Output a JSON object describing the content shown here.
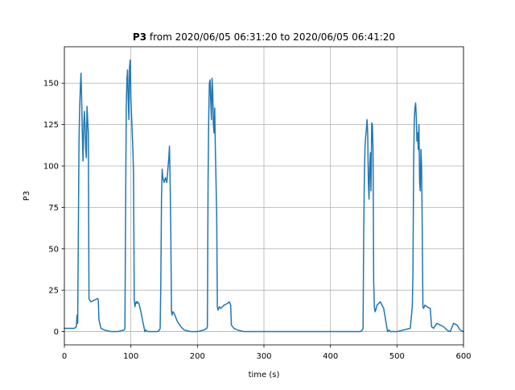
{
  "chart_data": {
    "type": "line",
    "title_bold": "P3",
    "title_rest": " from 2020/06/05 06:31:20 to 2020/06/05 06:41:20",
    "xlabel": "time (s)",
    "ylabel": "P3",
    "xlim": [
      0,
      600
    ],
    "ylim": [
      -8,
      172
    ],
    "xticks": [
      0,
      100,
      200,
      300,
      400,
      500,
      600
    ],
    "xtick_labels": [
      "0",
      "100",
      "200",
      "300",
      "400",
      "500",
      "600"
    ],
    "yticks": [
      0,
      25,
      50,
      75,
      100,
      125,
      150
    ],
    "ytick_labels": [
      "0",
      "25",
      "50",
      "75",
      "100",
      "125",
      "150"
    ],
    "grid": true,
    "color": "#1f77b4",
    "series": [
      {
        "x": [
          0,
          5,
          10,
          15,
          18,
          19,
          20,
          21,
          22,
          23,
          24,
          25,
          26,
          27,
          28,
          29,
          30,
          31,
          32,
          33,
          34,
          35,
          36,
          37,
          38,
          40,
          45,
          50,
          51,
          52,
          55,
          60,
          70,
          80,
          90,
          91,
          92,
          93,
          94,
          95,
          96,
          97,
          98,
          99,
          100,
          101,
          102,
          103,
          104,
          105,
          106,
          107,
          108,
          109,
          110,
          112,
          115,
          120,
          121,
          122,
          125,
          130,
          135,
          140,
          143,
          144,
          145,
          146,
          147,
          148,
          150,
          152,
          154,
          155,
          156,
          157,
          158,
          159,
          160,
          161,
          162,
          163,
          165,
          170,
          175,
          180,
          190,
          200,
          210,
          214,
          215,
          216,
          217,
          218,
          219,
          220,
          221,
          222,
          223,
          224,
          225,
          226,
          227,
          228,
          229,
          230,
          231,
          232,
          233,
          235,
          240,
          245,
          248,
          250,
          251,
          255,
          260,
          270,
          280,
          290,
          300,
          310,
          350,
          400,
          410,
          420,
          430,
          440,
          445,
          448,
          449,
          450,
          451,
          452,
          453,
          454,
          455,
          456,
          457,
          458,
          459,
          460,
          461,
          462,
          463,
          464,
          465,
          466,
          467,
          468,
          470,
          475,
          480,
          485,
          486,
          488,
          490,
          495,
          500,
          510,
          520,
          523,
          524,
          525,
          526,
          527,
          528,
          529,
          530,
          531,
          532,
          533,
          534,
          535,
          536,
          537,
          538,
          539,
          540,
          541,
          542,
          545,
          550,
          552,
          555,
          560,
          570,
          575,
          580,
          585,
          590,
          595,
          600
        ],
        "y": [
          2,
          2,
          2,
          2,
          3,
          10,
          5,
          60,
          115,
          135,
          147,
          156,
          140,
          120,
          103,
          122,
          133,
          125,
          110,
          105,
          136,
          128,
          120,
          20,
          19,
          18,
          19,
          20,
          19,
          7,
          2,
          1,
          0,
          0,
          1,
          2,
          70,
          135,
          152,
          158,
          140,
          128,
          160,
          164,
          140,
          130,
          120,
          110,
          95,
          20,
          15,
          17,
          18,
          17,
          18,
          17,
          12,
          2,
          0,
          1,
          0,
          0,
          0,
          0,
          1,
          2,
          30,
          80,
          98,
          93,
          90,
          93,
          90,
          95,
          100,
          105,
          112,
          90,
          60,
          12,
          10,
          12,
          11,
          6,
          3,
          1,
          0,
          0,
          1,
          2,
          3,
          90,
          130,
          150,
          152,
          140,
          128,
          153,
          145,
          125,
          120,
          135,
          110,
          90,
          70,
          15,
          13,
          14,
          15,
          14,
          16,
          17,
          18,
          16,
          4,
          2,
          1,
          0,
          0,
          0,
          0,
          0,
          0,
          0,
          0,
          0,
          0,
          0,
          0,
          1,
          2,
          60,
          95,
          112,
          118,
          122,
          128,
          120,
          90,
          80,
          100,
          108,
          85,
          126,
          125,
          110,
          30,
          15,
          12,
          13,
          16,
          18,
          14,
          2,
          0,
          1,
          0,
          0,
          0,
          1,
          2,
          15,
          35,
          100,
          128,
          135,
          138,
          130,
          115,
          120,
          110,
          125,
          90,
          85,
          110,
          100,
          60,
          15,
          14,
          15,
          16,
          15,
          14,
          3,
          2,
          5,
          3,
          1,
          0,
          5,
          4,
          1,
          0
        ]
      }
    ]
  }
}
